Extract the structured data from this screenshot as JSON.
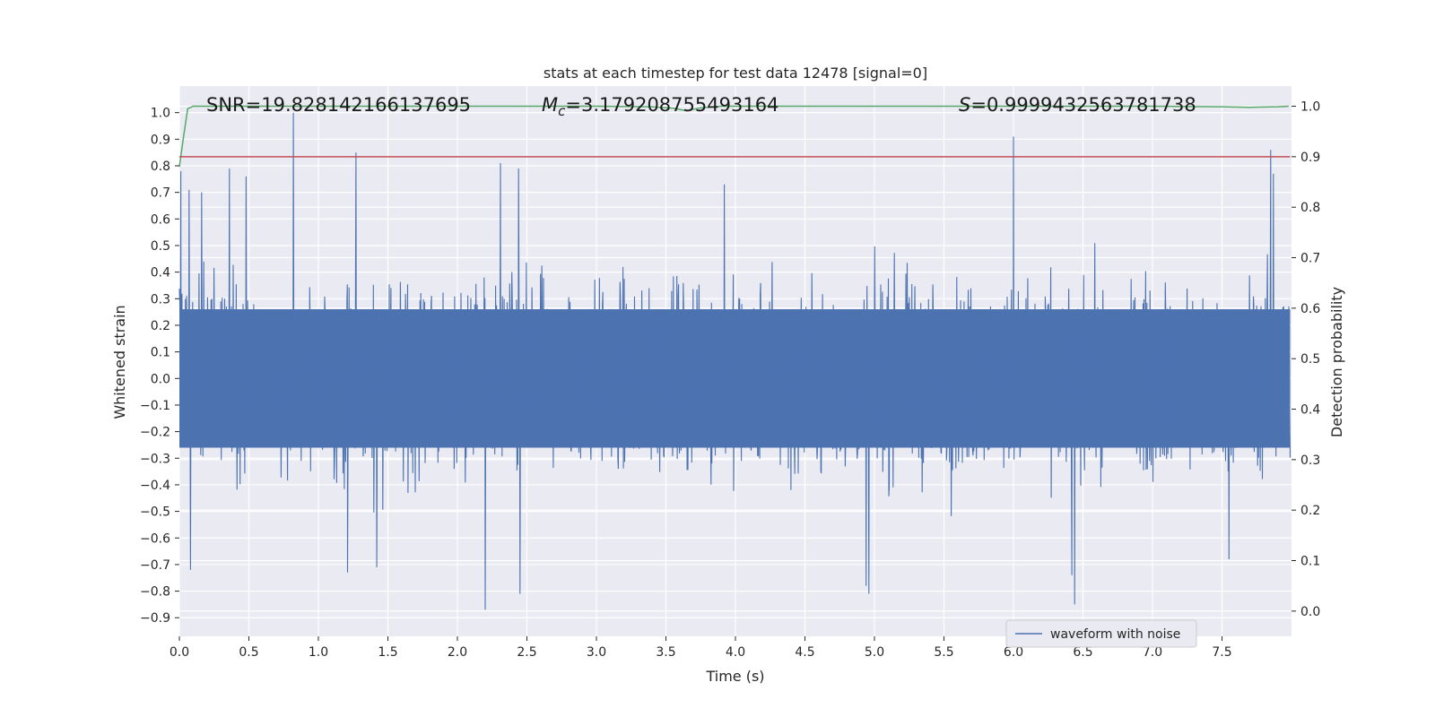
{
  "chart_data": {
    "type": "line",
    "title": "stats at each timestep for test data 12478 [signal=0]",
    "xlabel": "Time (s)",
    "ylabel": "Whitened strain",
    "y2label": "Detection probability",
    "xlim": [
      0.0,
      8.0
    ],
    "ylim": [
      -0.97,
      1.1
    ],
    "y2lim": [
      -0.05,
      1.04
    ],
    "xticks": [
      "0.0",
      "0.5",
      "1.0",
      "1.5",
      "2.0",
      "2.5",
      "3.0",
      "3.5",
      "4.0",
      "4.5",
      "5.0",
      "5.5",
      "6.0",
      "6.5",
      "7.0",
      "7.5"
    ],
    "yticks": [
      "-0.9",
      "-0.8",
      "-0.7",
      "-0.6",
      "-0.5",
      "-0.4",
      "-0.3",
      "-0.2",
      "-0.1",
      "0.0",
      "0.1",
      "0.2",
      "0.3",
      "0.4",
      "0.5",
      "0.6",
      "0.7",
      "0.8",
      "0.9",
      "1.0"
    ],
    "y2ticks": [
      "0.0",
      "0.1",
      "0.2",
      "0.3",
      "0.4",
      "0.5",
      "0.6",
      "0.7",
      "0.8",
      "0.9",
      "1.0"
    ],
    "grid": true,
    "legend_position": "lower-right",
    "series": [
      {
        "name": "waveform with noise",
        "axis": "left",
        "color": "#4c72b0",
        "description_shape": "dense noise envelope",
        "x_range": [
          0.0,
          7.99
        ],
        "typical_envelope": [
          -0.42,
          0.42
        ],
        "peaks": [
          {
            "x": 0.01,
            "y": 0.78
          },
          {
            "x": 0.07,
            "y": 0.71
          },
          {
            "x": 0.16,
            "y": 0.7
          },
          {
            "x": 0.36,
            "y": 0.79
          },
          {
            "x": 0.48,
            "y": 0.76
          },
          {
            "x": 0.82,
            "y": 1.0
          },
          {
            "x": 1.27,
            "y": 0.85
          },
          {
            "x": 2.31,
            "y": 0.81
          },
          {
            "x": 2.44,
            "y": 0.79
          },
          {
            "x": 3.92,
            "y": 0.73
          },
          {
            "x": 6.0,
            "y": 0.91
          },
          {
            "x": 7.85,
            "y": 0.86
          },
          {
            "x": 7.87,
            "y": 0.77
          }
        ],
        "troughs": [
          {
            "x": 0.08,
            "y": -0.72
          },
          {
            "x": 1.21,
            "y": -0.73
          },
          {
            "x": 1.42,
            "y": -0.71
          },
          {
            "x": 2.2,
            "y": -0.87
          },
          {
            "x": 2.45,
            "y": -0.81
          },
          {
            "x": 4.94,
            "y": -0.78
          },
          {
            "x": 4.96,
            "y": -0.81
          },
          {
            "x": 6.42,
            "y": -0.74
          },
          {
            "x": 6.44,
            "y": -0.85
          },
          {
            "x": 7.55,
            "y": -0.68
          }
        ]
      },
      {
        "name": "",
        "axis": "right",
        "color": "#55a868",
        "x": [
          0.0,
          0.03,
          0.06,
          0.1,
          0.5,
          1.0,
          2.0,
          3.0,
          3.4,
          3.55,
          3.65,
          3.75,
          3.9,
          4.5,
          5.0,
          6.0,
          7.0,
          7.5,
          7.7,
          7.9,
          7.98
        ],
        "values": [
          0.88,
          0.94,
          0.995,
          1.0,
          1.0,
          1.0,
          1.0,
          1.0,
          0.999,
          0.996,
          0.991,
          0.997,
          1.0,
          1.0,
          1.0,
          1.0,
          1.0,
          0.999,
          0.998,
          0.999,
          1.0
        ]
      },
      {
        "name": "",
        "axis": "right",
        "color": "#c44e52",
        "x": [
          0.0,
          7.99
        ],
        "values": [
          0.9,
          0.9
        ]
      }
    ],
    "annotations": {
      "snr_label": "SNR=19.828142166137695",
      "mc_prefix": "M",
      "mc_subscript": "c",
      "mc_value": "=3.179208755493164",
      "s_prefix": "S",
      "s_value": "=0.9999432563781738"
    }
  }
}
